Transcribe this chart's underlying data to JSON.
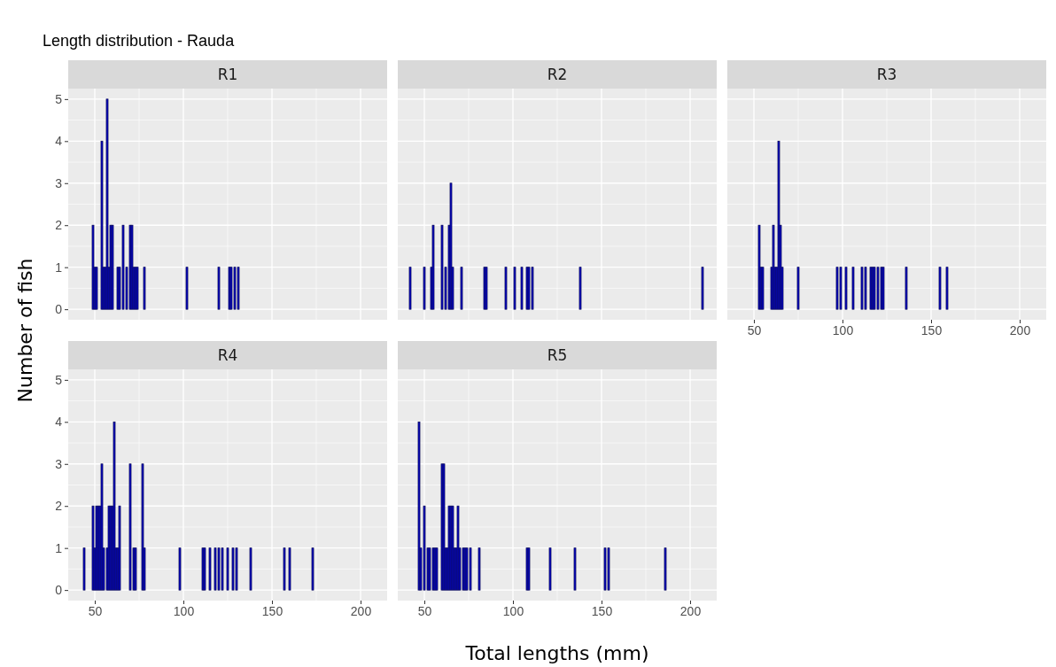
{
  "chart_data": [
    {
      "type": "bar",
      "title": "R1",
      "ylabel": "Number of fish",
      "annotations": [
        "Length distribution - Rauda"
      ],
      "color": "#0000cd",
      "grid": true,
      "tick_labels": "y",
      "xlim": [
        35,
        215
      ],
      "ylim": [
        -0.25,
        5.25
      ],
      "xticks": [
        50,
        100,
        150,
        200
      ],
      "yticks": [
        0,
        1,
        2,
        3,
        4,
        5
      ],
      "x": [
        49,
        50,
        51,
        54,
        55,
        56,
        57,
        58,
        59,
        60,
        63,
        64,
        66,
        68,
        70,
        71,
        72,
        73,
        74,
        78,
        102,
        120,
        126,
        127,
        129,
        131
      ],
      "values": [
        2,
        1,
        1,
        4,
        1,
        1,
        5,
        1,
        2,
        2,
        1,
        1,
        2,
        1,
        2,
        2,
        1,
        1,
        1,
        1,
        1,
        1,
        1,
        1,
        1,
        1
      ]
    },
    {
      "type": "bar",
      "title": "R2",
      "color": "#0000cd",
      "grid": true,
      "tick_labels": false,
      "xlim": [
        35,
        215
      ],
      "ylim": [
        -0.25,
        5.25
      ],
      "xticks": [
        50,
        100,
        150,
        200
      ],
      "yticks": [
        0,
        1,
        2,
        3,
        4,
        5
      ],
      "x": [
        42,
        50,
        54,
        55,
        60,
        62,
        64,
        65,
        66,
        71,
        84,
        85,
        96,
        101,
        105,
        108,
        109,
        111,
        138,
        207
      ],
      "values": [
        1,
        1,
        1,
        2,
        2,
        1,
        2,
        3,
        1,
        1,
        1,
        1,
        1,
        1,
        1,
        1,
        1,
        1,
        1,
        1
      ]
    },
    {
      "type": "bar",
      "title": "R3",
      "color": "#0000cd",
      "grid": true,
      "tick_labels": "x",
      "xlim": [
        35,
        215
      ],
      "ylim": [
        -0.25,
        5.25
      ],
      "xticks": [
        50,
        100,
        150,
        200
      ],
      "yticks": [
        0,
        1,
        2,
        3,
        4,
        5
      ],
      "x": [
        53,
        54,
        55,
        60,
        61,
        62,
        63,
        64,
        65,
        66,
        75,
        97,
        99,
        102,
        106,
        111,
        113,
        116,
        117,
        118,
        120,
        122,
        123,
        136,
        155,
        159
      ],
      "values": [
        2,
        1,
        1,
        1,
        2,
        1,
        1,
        4,
        2,
        1,
        1,
        1,
        1,
        1,
        1,
        1,
        1,
        1,
        1,
        1,
        1,
        1,
        1,
        1,
        1,
        1
      ]
    },
    {
      "type": "bar",
      "title": "R4",
      "color": "#0000cd",
      "grid": true,
      "xlim": [
        35,
        215
      ],
      "ylim": [
        -0.25,
        5.25
      ],
      "xticks": [
        50,
        100,
        150,
        200
      ],
      "yticks": [
        0,
        1,
        2,
        3,
        4,
        5
      ],
      "x": [
        44,
        49,
        50,
        51,
        52,
        53,
        54,
        55,
        57,
        58,
        59,
        60,
        61,
        62,
        63,
        64,
        70,
        72,
        73,
        77,
        78,
        98,
        111,
        112,
        115,
        118,
        120,
        122,
        125,
        128,
        130,
        138,
        157,
        160,
        173
      ],
      "values": [
        1,
        2,
        1,
        2,
        2,
        2,
        3,
        1,
        1,
        2,
        2,
        2,
        4,
        1,
        1,
        2,
        3,
        1,
        1,
        3,
        1,
        1,
        1,
        1,
        1,
        1,
        1,
        1,
        1,
        1,
        1,
        1,
        1,
        1,
        1
      ]
    },
    {
      "type": "bar",
      "title": "R5",
      "xlabel": "Total lengths (mm)",
      "color": "#0000cd",
      "grid": true,
      "tick_labels": "x",
      "xlim": [
        35,
        215
      ],
      "ylim": [
        -0.25,
        5.25
      ],
      "xticks": [
        50,
        100,
        150,
        200
      ],
      "yticks": [
        0,
        1,
        2,
        3,
        4,
        5
      ],
      "x": [
        47,
        48,
        50,
        52,
        53,
        55,
        56,
        57,
        60,
        61,
        62,
        63,
        64,
        65,
        66,
        67,
        68,
        69,
        70,
        72,
        73,
        74,
        76,
        81,
        108,
        109,
        121,
        135,
        152,
        154,
        186
      ],
      "values": [
        4,
        1,
        2,
        1,
        1,
        1,
        1,
        1,
        3,
        3,
        1,
        1,
        2,
        2,
        2,
        1,
        1,
        2,
        1,
        1,
        1,
        1,
        1,
        1,
        1,
        1,
        1,
        1,
        1,
        1,
        1
      ]
    }
  ]
}
